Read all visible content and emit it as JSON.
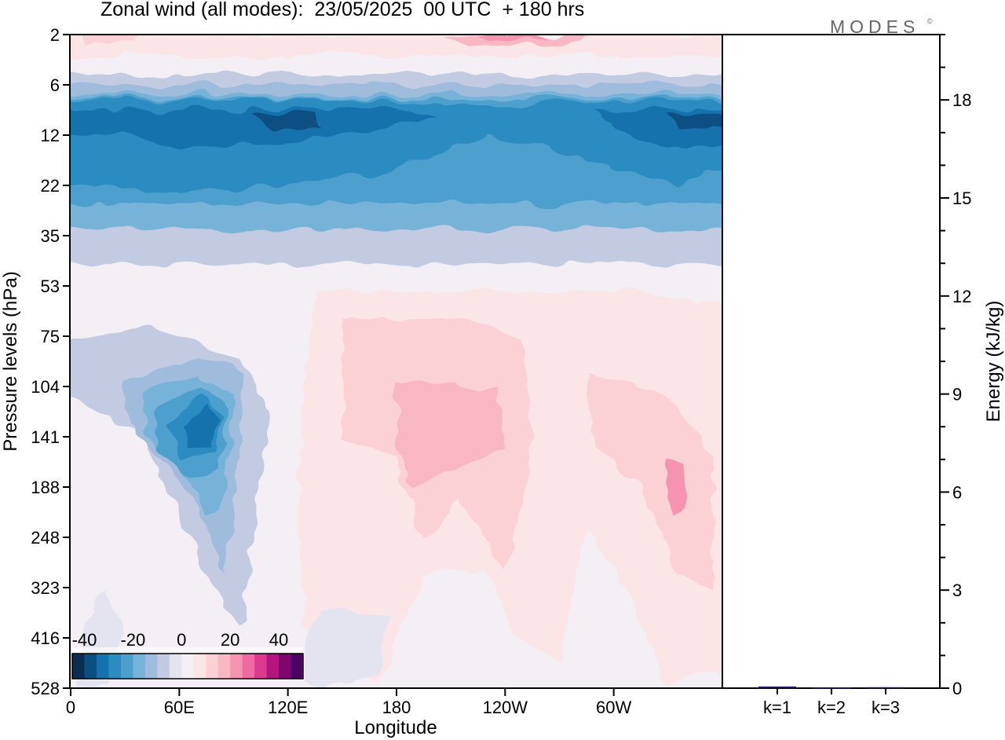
{
  "title": "Zonal wind (all modes):  23/05/2025  00 UTC  + 180 hrs",
  "logo": "MODES",
  "logo_mark": "©",
  "chart_data": [
    {
      "type": "heatmap",
      "xlabel": "Longitude",
      "ylabel": "Pressure levels (hPa)",
      "x_ticks": [
        "0",
        "60E",
        "120E",
        "180",
        "120W",
        "60W"
      ],
      "y_ticks": [
        "2",
        "6",
        "12",
        "22",
        "35",
        "53",
        "75",
        "104",
        "141",
        "188",
        "248",
        "323",
        "416",
        "528"
      ],
      "colorbar": {
        "tick_labels": [
          "-40",
          "-20",
          "0",
          "20",
          "40"
        ],
        "levels": [
          -40,
          -35,
          -30,
          -25,
          -20,
          -15,
          -10,
          -5,
          0,
          5,
          10,
          15,
          20,
          25,
          30,
          35,
          40
        ],
        "colors": [
          "#0b2d52",
          "#0a4f82",
          "#1572ad",
          "#2b8cc0",
          "#4d9fce",
          "#77b2d8",
          "#9fbcdc",
          "#c3cbe3",
          "#e4e4f0",
          "#f4eef5",
          "#fbe5e7",
          "#fbd1d6",
          "#f9b6c3",
          "#f693b1",
          "#ef6aa0",
          "#dc3a8e",
          "#b4167d",
          "#80066f",
          "#4c0263"
        ]
      },
      "features": [
        {
          "label": "stratospheric easterly band",
          "lon_range": [
            0,
            360
          ],
          "p_range": [
            7,
            28
          ],
          "value": -25
        },
        {
          "label": "strongest easterlies",
          "lon_range": [
            80,
            140
          ],
          "p_range": [
            9,
            12
          ],
          "value": -35
        },
        {
          "label": "upper westerly band",
          "lon_range": [
            0,
            360
          ],
          "p_range": [
            2,
            4
          ],
          "value": 15
        },
        {
          "label": "easterly jet",
          "lon_range": [
            60,
            85
          ],
          "p_range": [
            110,
            140
          ],
          "value": -30
        },
        {
          "label": "westerly maximum",
          "lon_range": [
            185,
            215
          ],
          "p_range": [
            110,
            160
          ],
          "value": 17
        },
        {
          "label": "westerly maximum",
          "lon_range": [
            328,
            338
          ],
          "p_range": [
            160,
            210
          ],
          "value": 17
        }
      ]
    },
    {
      "type": "bar",
      "ylabel": "Energy (kJ/kg)",
      "categories": [
        "k=1",
        "k=2",
        "k=3"
      ],
      "values": [
        0.05,
        0.02,
        0.03
      ],
      "ylim": [
        0,
        20
      ],
      "y_ticks": [
        "0",
        "3",
        "6",
        "9",
        "12",
        "15",
        "18"
      ],
      "bar_color": "#1a1a5a"
    }
  ]
}
